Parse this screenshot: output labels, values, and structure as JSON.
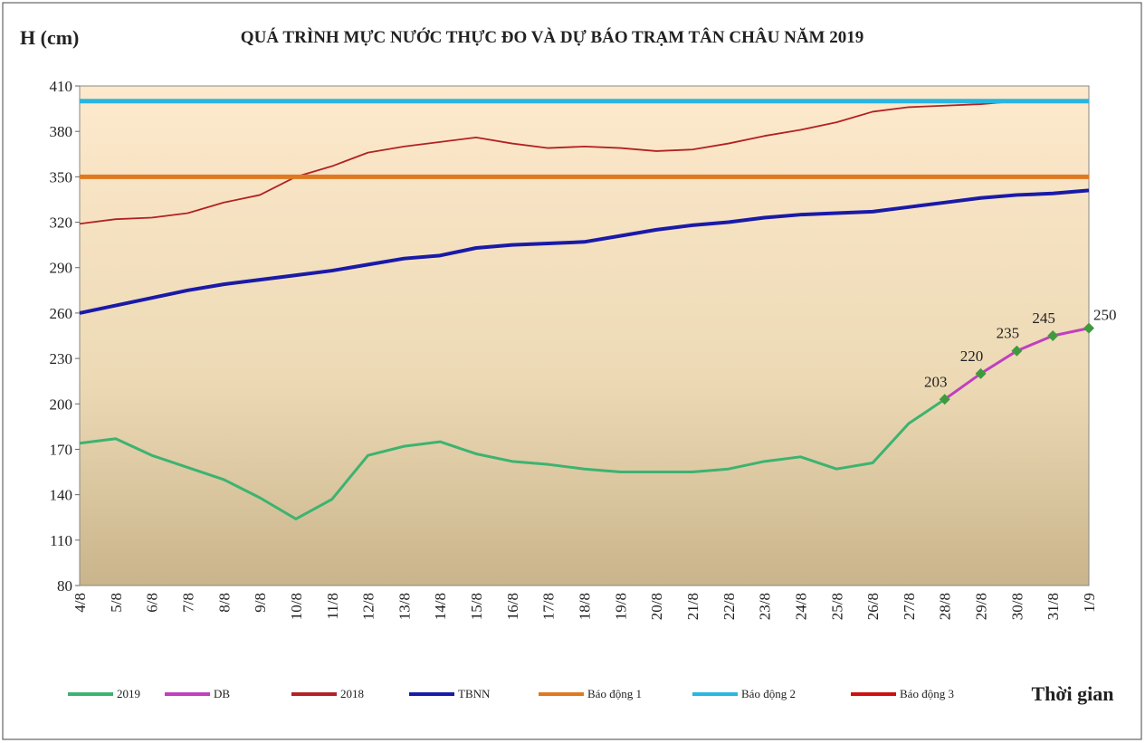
{
  "chart_data": {
    "type": "line",
    "title": "QUÁ TRÌNH MỰC NƯỚC THỰC ĐO VÀ DỰ BÁO TRẠM TÂN CHÂU NĂM 2019",
    "y_label": "H (cm)",
    "x_label": "Thời gian",
    "categories": [
      "4/8",
      "5/8",
      "6/8",
      "7/8",
      "8/8",
      "9/8",
      "10/8",
      "11/8",
      "12/8",
      "13/8",
      "14/8",
      "15/8",
      "16/8",
      "17/8",
      "18/8",
      "19/8",
      "20/8",
      "21/8",
      "22/8",
      "23/8",
      "24/8",
      "25/8",
      "26/8",
      "27/8",
      "28/8",
      "29/8",
      "30/8",
      "31/8",
      "1/9"
    ],
    "ylim": [
      80,
      410
    ],
    "yticks": [
      80,
      110,
      140,
      170,
      200,
      230,
      260,
      290,
      320,
      350,
      380,
      410
    ],
    "series": [
      {
        "name": "2019",
        "color": "#3cb371",
        "width": 3,
        "values": [
          174,
          177,
          166,
          158,
          150,
          138,
          124,
          137,
          166,
          172,
          175,
          167,
          162,
          160,
          157,
          155,
          155,
          155,
          157,
          162,
          165,
          157,
          161,
          187,
          203,
          null,
          null,
          null,
          null
        ]
      },
      {
        "name": "DB",
        "color": "#c040c0",
        "width": 3,
        "markers": true,
        "data_labels": true,
        "values": [
          null,
          null,
          null,
          null,
          null,
          null,
          null,
          null,
          null,
          null,
          null,
          null,
          null,
          null,
          null,
          null,
          null,
          null,
          null,
          null,
          null,
          null,
          null,
          null,
          203,
          220,
          235,
          245,
          250
        ]
      },
      {
        "name": "2018",
        "color": "#b22222",
        "width": 1.8,
        "values": [
          319,
          322,
          323,
          326,
          333,
          338,
          350,
          357,
          366,
          370,
          373,
          376,
          372,
          369,
          370,
          369,
          367,
          368,
          372,
          377,
          381,
          386,
          393,
          396,
          397,
          398,
          400,
          400,
          null
        ]
      },
      {
        "name": "TBNN",
        "color": "#1a1aa8",
        "width": 4,
        "values": [
          260,
          265,
          270,
          275,
          279,
          282,
          285,
          288,
          292,
          296,
          298,
          303,
          305,
          306,
          307,
          311,
          315,
          318,
          320,
          323,
          325,
          326,
          327,
          330,
          333,
          336,
          338,
          339,
          341
        ]
      },
      {
        "name": "Báo động 1",
        "color": "#e07820",
        "width": 5,
        "values": [
          350,
          350,
          350,
          350,
          350,
          350,
          350,
          350,
          350,
          350,
          350,
          350,
          350,
          350,
          350,
          350,
          350,
          350,
          350,
          350,
          350,
          350,
          350,
          350,
          350,
          350,
          350,
          350,
          350
        ]
      },
      {
        "name": "Báo động 2",
        "color": "#29b6e0",
        "width": 5,
        "values": [
          400,
          400,
          400,
          400,
          400,
          400,
          400,
          400,
          400,
          400,
          400,
          400,
          400,
          400,
          400,
          400,
          400,
          400,
          400,
          400,
          400,
          400,
          400,
          400,
          400,
          400,
          400,
          400,
          400
        ]
      },
      {
        "name": "Báo động 3",
        "color": "#d01010",
        "width": 5,
        "values": [
          null,
          null,
          null,
          null,
          null,
          null,
          null,
          null,
          null,
          null,
          null,
          null,
          null,
          null,
          null,
          null,
          null,
          null,
          null,
          null,
          null,
          null,
          null,
          null,
          null,
          null,
          null,
          null,
          null
        ]
      }
    ]
  }
}
